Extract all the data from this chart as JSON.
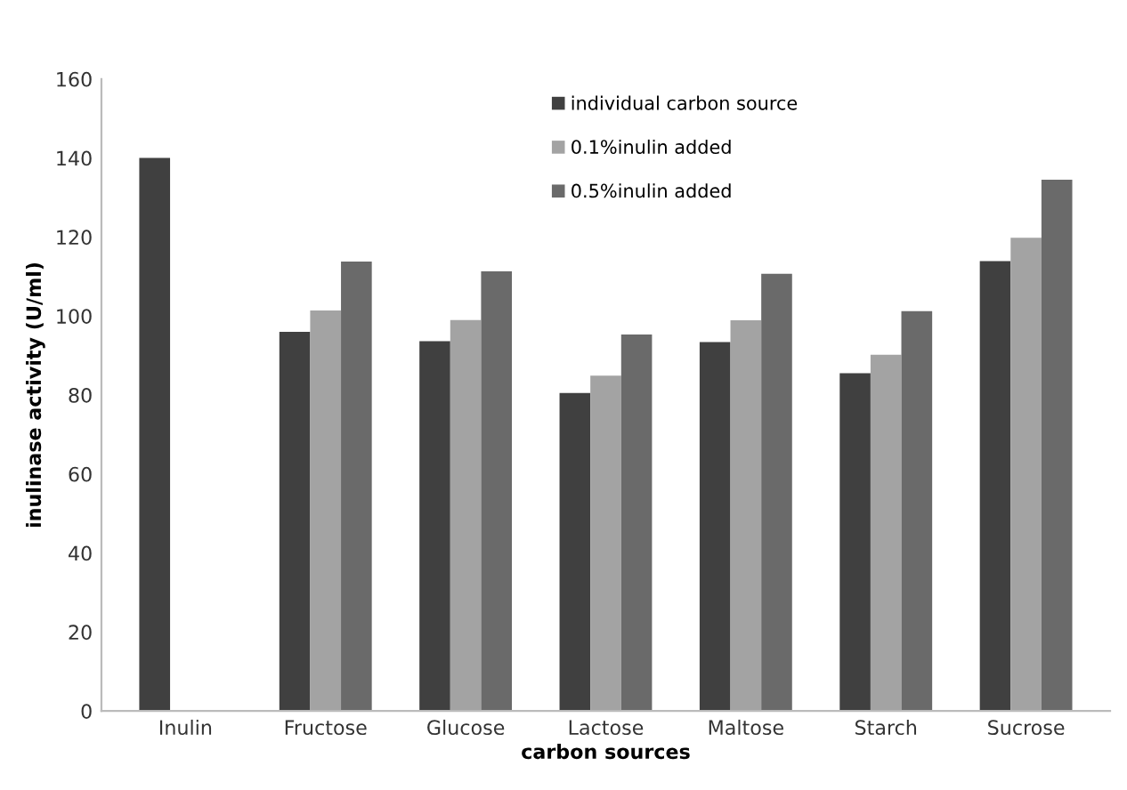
{
  "chart_data": {
    "type": "bar",
    "xlabel": "carbon sources",
    "ylabel": "inulinase activity (U/ml)",
    "categories": [
      "Inulin",
      "Fructose",
      "Glucose",
      "Lactose",
      "Maltose",
      "Starch",
      "Sucrose"
    ],
    "series": [
      {
        "name": "individual carbon source",
        "color": "#404040",
        "values": [
          140,
          96,
          93.6,
          80.5,
          93.4,
          85.5,
          113.9
        ]
      },
      {
        "name": "0.1%inulin added",
        "color": "#a3a3a3",
        "values": [
          null,
          101.4,
          99,
          84.9,
          98.9,
          90.2,
          119.8
        ]
      },
      {
        "name": "0.5%inulin added",
        "color": "#6a6a6a",
        "values": [
          null,
          113.8,
          111.3,
          95.3,
          110.7,
          101.2,
          134.5
        ]
      }
    ],
    "ylim": [
      0,
      160
    ],
    "yticks": [
      0,
      20,
      40,
      60,
      80,
      100,
      120,
      140,
      160
    ],
    "grid": false,
    "legend": "top"
  }
}
